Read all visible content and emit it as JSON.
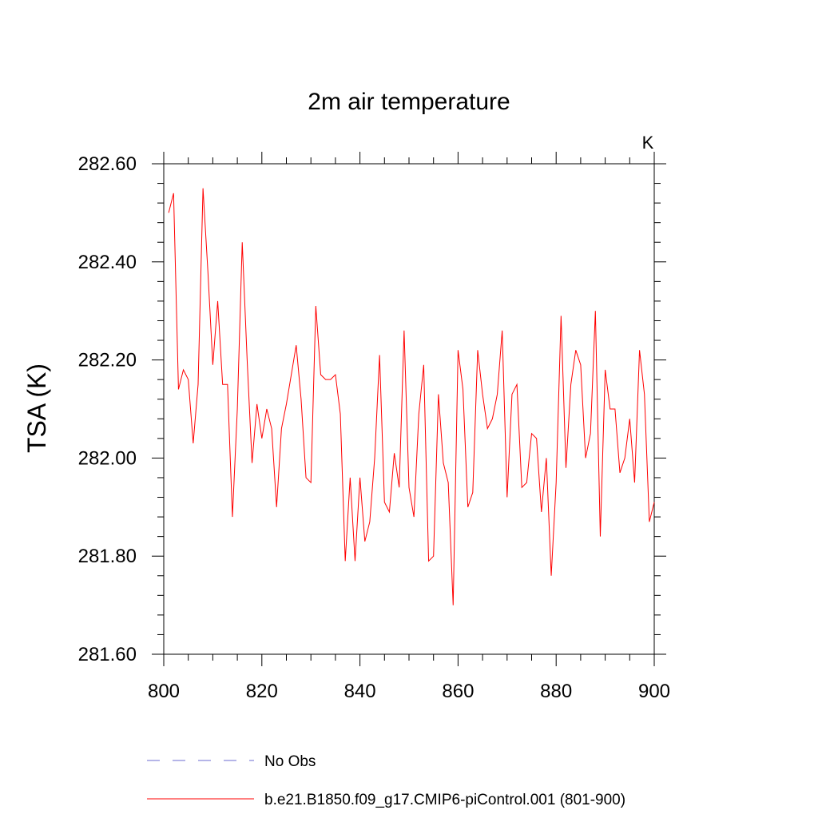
{
  "chart_data": {
    "type": "line",
    "title": "2m air temperature",
    "ylabel": "TSA  (K)",
    "xlabel": "",
    "unit_label": "K",
    "xlim": [
      800,
      900
    ],
    "ylim": [
      281.6,
      282.6
    ],
    "xticks": [
      "800",
      "820",
      "840",
      "860",
      "880",
      "900"
    ],
    "yticks": [
      "282.60",
      "282.40",
      "282.20",
      "282.00",
      "281.80",
      "281.60"
    ],
    "grid": false,
    "legend_position": "bottom",
    "series": [
      {
        "name": "No Obs",
        "color": "#6b6bd0",
        "style": "dashed",
        "x": [],
        "values": []
      },
      {
        "name": "b.e21.B1850.f09_g17.CMIP6-piControl.001 (801-900)",
        "color": "#ff0000",
        "style": "solid",
        "x": [
          801,
          802,
          803,
          804,
          805,
          806,
          807,
          808,
          809,
          810,
          811,
          812,
          813,
          814,
          815,
          816,
          817,
          818,
          819,
          820,
          821,
          822,
          823,
          824,
          825,
          826,
          827,
          828,
          829,
          830,
          831,
          832,
          833,
          834,
          835,
          836,
          837,
          838,
          839,
          840,
          841,
          842,
          843,
          844,
          845,
          846,
          847,
          848,
          849,
          850,
          851,
          852,
          853,
          854,
          855,
          856,
          857,
          858,
          859,
          860,
          861,
          862,
          863,
          864,
          865,
          866,
          867,
          868,
          869,
          870,
          871,
          872,
          873,
          874,
          875,
          876,
          877,
          878,
          879,
          880,
          881,
          882,
          883,
          884,
          885,
          886,
          887,
          888,
          889,
          890,
          891,
          892,
          893,
          894,
          895,
          896,
          897,
          898,
          899,
          900
        ],
        "values": [
          282.5,
          282.54,
          282.14,
          282.18,
          282.16,
          282.03,
          282.15,
          282.55,
          282.38,
          282.19,
          282.32,
          282.15,
          282.15,
          281.88,
          282.1,
          282.44,
          282.2,
          281.99,
          282.11,
          282.04,
          282.1,
          282.06,
          281.9,
          282.06,
          282.11,
          282.17,
          282.23,
          282.12,
          281.96,
          281.95,
          282.31,
          282.17,
          282.16,
          282.16,
          282.17,
          282.09,
          281.79,
          281.96,
          281.79,
          281.96,
          281.83,
          281.87,
          282.0,
          282.21,
          281.91,
          281.89,
          282.01,
          281.94,
          282.26,
          281.94,
          281.88,
          282.09,
          282.19,
          281.79,
          281.8,
          282.13,
          281.99,
          281.95,
          281.7,
          282.22,
          282.14,
          281.9,
          281.93,
          282.22,
          282.13,
          282.06,
          282.08,
          282.13,
          282.26,
          281.92,
          282.13,
          282.15,
          281.94,
          281.95,
          282.05,
          282.04,
          281.89,
          282.0,
          281.76,
          281.95,
          282.29,
          281.98,
          282.15,
          282.22,
          282.19,
          282.0,
          282.05,
          282.3,
          281.84,
          282.18,
          282.1,
          282.1,
          281.97,
          282.0,
          282.08,
          281.95,
          282.22,
          282.13,
          281.87,
          281.91
        ]
      }
    ]
  }
}
